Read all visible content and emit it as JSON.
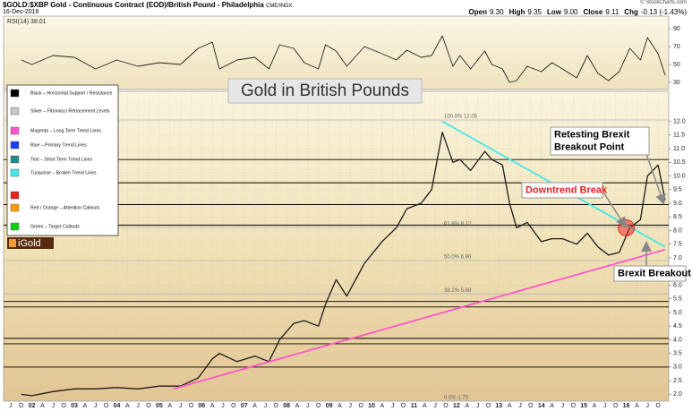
{
  "header": {
    "symbol_title": "$GOLD:$XBP Gold - Continuous Contract (EOD)/British Pound - Philadelphia",
    "exchange": "CME/INDX",
    "date": "16-Dec-2016",
    "copyright": "© StockCharts.com",
    "quote": [
      {
        "label": "Open",
        "value": "9.30"
      },
      {
        "label": "High",
        "value": "9.35"
      },
      {
        "label": "Low",
        "value": "9.00"
      },
      {
        "label": "Close",
        "value": "9.11"
      },
      {
        "label": "Chg",
        "value": "-0.13 (-1.43%)"
      }
    ]
  },
  "legend_box": {
    "items": [
      {
        "text": "Black – Horizontal Support / Resistance",
        "colors": [
          "#000000"
        ]
      },
      {
        "text": "Silver – Fibonacci Retracement Levels",
        "colors": [
          "#c8c8c8"
        ]
      },
      {
        "text": "Magenta – Long Term Trend Lines",
        "colors": [
          "#ff55cc"
        ]
      },
      {
        "text": "Blue – Primary Trend Lines",
        "colors": [
          "#1e3cff"
        ]
      },
      {
        "text": "Teal – Short Term Trend Lines",
        "colors": [
          "#2a8a8a"
        ]
      },
      {
        "text": "Turquoise – Broken Trend Lines",
        "colors": [
          "#40e8e8"
        ]
      },
      {
        "text": "Red / Orange – Attention Callouts",
        "colors": [
          "#e52020",
          "#ff9900"
        ]
      },
      {
        "text": "Green – Target Callouts",
        "colors": [
          "#10d010"
        ]
      }
    ]
  },
  "logo": "iGold",
  "chart_data": [
    {
      "type": "line",
      "title": "RSI(14) 38.01",
      "color": "#222222",
      "x": [
        "2001-10",
        "2002-01",
        "2002-07",
        "2003-01",
        "2003-07",
        "2004-01",
        "2004-07",
        "2005-01",
        "2005-07",
        "2005-12",
        "2006-04",
        "2006-06",
        "2006-11",
        "2007-04",
        "2007-08",
        "2007-11",
        "2008-03",
        "2008-06",
        "2008-10",
        "2008-12",
        "2009-03",
        "2009-06",
        "2009-11",
        "2010-04",
        "2010-08",
        "2010-11",
        "2011-03",
        "2011-06",
        "2011-09",
        "2011-12",
        "2012-02",
        "2012-05",
        "2012-09",
        "2012-11",
        "2013-02",
        "2013-04",
        "2013-06",
        "2013-09",
        "2014-01",
        "2014-04",
        "2014-07",
        "2014-11",
        "2015-02",
        "2015-05",
        "2015-08",
        "2015-11",
        "2016-02",
        "2016-05",
        "2016-07",
        "2016-10",
        "2016-12"
      ],
      "values": [
        55,
        50,
        60,
        58,
        45,
        55,
        48,
        52,
        50,
        68,
        75,
        45,
        55,
        58,
        45,
        72,
        68,
        52,
        45,
        72,
        65,
        48,
        70,
        62,
        55,
        66,
        58,
        60,
        82,
        48,
        60,
        45,
        65,
        50,
        45,
        30,
        32,
        48,
        42,
        52,
        45,
        35,
        60,
        40,
        32,
        42,
        68,
        55,
        80,
        62,
        38.01
      ],
      "xlim": [
        "2001-05",
        "2017-01"
      ],
      "ylim": [
        22,
        104
      ],
      "yticks": [
        90,
        70,
        50,
        30
      ],
      "grid": true
    },
    {
      "type": "line",
      "title": "Gold in British Pounds",
      "color": "#1a1a1a",
      "x": [
        "2001-10",
        "2002-01",
        "2002-07",
        "2003-01",
        "2003-07",
        "2004-01",
        "2004-07",
        "2005-01",
        "2005-07",
        "2005-12",
        "2006-04",
        "2006-06",
        "2006-11",
        "2007-04",
        "2007-08",
        "2007-11",
        "2008-03",
        "2008-06",
        "2008-10",
        "2008-12",
        "2009-03",
        "2009-06",
        "2009-11",
        "2010-04",
        "2010-08",
        "2010-11",
        "2011-03",
        "2011-06",
        "2011-09",
        "2011-12",
        "2012-02",
        "2012-05",
        "2012-09",
        "2012-11",
        "2013-02",
        "2013-04",
        "2013-06",
        "2013-09",
        "2014-01",
        "2014-04",
        "2014-07",
        "2014-11",
        "2015-02",
        "2015-05",
        "2015-08",
        "2015-11",
        "2016-02",
        "2016-05",
        "2016-07",
        "2016-10",
        "2016-12"
      ],
      "values": [
        2.0,
        1.95,
        2.1,
        2.2,
        2.2,
        2.25,
        2.2,
        2.3,
        2.3,
        2.6,
        3.3,
        3.5,
        3.2,
        3.4,
        3.2,
        4.0,
        4.6,
        4.7,
        4.5,
        5.3,
        6.2,
        5.6,
        6.8,
        7.6,
        8.1,
        8.8,
        9.0,
        9.5,
        11.6,
        10.5,
        10.6,
        10.2,
        10.9,
        10.6,
        10.4,
        9.0,
        8.1,
        8.3,
        7.6,
        7.7,
        7.7,
        7.5,
        7.9,
        7.4,
        7.1,
        7.2,
        8.1,
        8.4,
        10.0,
        10.4,
        9.11
      ],
      "xlim": [
        "2001-05",
        "2017-01"
      ],
      "ylim": [
        1.75,
        13.1
      ],
      "yticks": [
        {
          "value": 2,
          "label": "2.0"
        },
        2.5,
        {
          "value": 3,
          "label": "3.0"
        },
        3.5,
        {
          "value": 4,
          "label": "4.0"
        },
        4.5,
        {
          "value": 5,
          "label": "5.0"
        },
        5.5,
        {
          "value": 6,
          "label": "6.0"
        },
        6.5,
        {
          "value": 7,
          "label": "7.0"
        },
        7.5,
        {
          "value": 8,
          "label": "8.0"
        },
        8.5,
        {
          "value": 9,
          "label": "9.0"
        },
        9.5,
        {
          "value": 10,
          "label": "10.0"
        },
        10.5,
        {
          "value": 11,
          "label": "11.0"
        },
        11.5,
        {
          "value": 12,
          "label": "12.0"
        }
      ],
      "xticks": [
        {
          "value": "2001-07",
          "label": "J"
        },
        {
          "value": "2001-10",
          "label": "O"
        },
        {
          "value": "2002-01",
          "label": "02"
        },
        {
          "value": "2002-04",
          "label": "A"
        },
        {
          "value": "2002-07",
          "label": "J"
        },
        {
          "value": "2002-10",
          "label": "O"
        },
        {
          "value": "2003-01",
          "label": "03"
        },
        {
          "value": "2003-04",
          "label": "A"
        },
        {
          "value": "2003-07",
          "label": "J"
        },
        {
          "value": "2003-10",
          "label": "O"
        },
        {
          "value": "2004-01",
          "label": "04"
        },
        {
          "value": "2004-04",
          "label": "A"
        },
        {
          "value": "2004-07",
          "label": "J"
        },
        {
          "value": "2004-10",
          "label": "O"
        },
        {
          "value": "2005-01",
          "label": "05"
        },
        {
          "value": "2005-04",
          "label": "A"
        },
        {
          "value": "2005-07",
          "label": "J"
        },
        {
          "value": "2005-10",
          "label": "O"
        },
        {
          "value": "2006-01",
          "label": "06"
        },
        {
          "value": "2006-04",
          "label": "A"
        },
        {
          "value": "2006-07",
          "label": "J"
        },
        {
          "value": "2006-10",
          "label": "O"
        },
        {
          "value": "2007-01",
          "label": "07"
        },
        {
          "value": "2007-04",
          "label": "A"
        },
        {
          "value": "2007-07",
          "label": "J"
        },
        {
          "value": "2007-10",
          "label": "O"
        },
        {
          "value": "2008-01",
          "label": "08"
        },
        {
          "value": "2008-04",
          "label": "A"
        },
        {
          "value": "2008-07",
          "label": "J"
        },
        {
          "value": "2008-10",
          "label": "O"
        },
        {
          "value": "2009-01",
          "label": "09"
        },
        {
          "value": "2009-04",
          "label": "A"
        },
        {
          "value": "2009-07",
          "label": "J"
        },
        {
          "value": "2009-10",
          "label": "O"
        },
        {
          "value": "2010-01",
          "label": "10"
        },
        {
          "value": "2010-04",
          "label": "A"
        },
        {
          "value": "2010-07",
          "label": "J"
        },
        {
          "value": "2010-10",
          "label": "O"
        },
        {
          "value": "2011-01",
          "label": "11"
        },
        {
          "value": "2011-04",
          "label": "A"
        },
        {
          "value": "2011-07",
          "label": "J"
        },
        {
          "value": "2011-10",
          "label": "O"
        },
        {
          "value": "2012-01",
          "label": "12"
        },
        {
          "value": "2012-04",
          "label": "A"
        },
        {
          "value": "2012-07",
          "label": "J"
        },
        {
          "value": "2012-10",
          "label": "O"
        },
        {
          "value": "2013-01",
          "label": "13"
        },
        {
          "value": "2013-04",
          "label": "A"
        },
        {
          "value": "2013-07",
          "label": "J"
        },
        {
          "value": "2013-10",
          "label": "O"
        },
        {
          "value": "2014-01",
          "label": "14"
        },
        {
          "value": "2014-04",
          "label": "A"
        },
        {
          "value": "2014-07",
          "label": "J"
        },
        {
          "value": "2014-10",
          "label": "O"
        },
        {
          "value": "2015-01",
          "label": "15"
        },
        {
          "value": "2015-04",
          "label": "A"
        },
        {
          "value": "2015-07",
          "label": "J"
        },
        {
          "value": "2015-10",
          "label": "O"
        },
        {
          "value": "2016-01",
          "label": "16"
        },
        {
          "value": "2016-04",
          "label": "A"
        },
        {
          "value": "2016-07",
          "label": "J"
        },
        {
          "value": "2016-10",
          "label": "O"
        }
      ],
      "grid": true,
      "support_levels": [
        10.6,
        9.75,
        8.95,
        8.2,
        5.4,
        5.2,
        4.05,
        3.85,
        3.0
      ],
      "fibonacci": [
        {
          "value": 12.05,
          "label": "100.0% 12.05"
        },
        {
          "value": 8.12,
          "label": "61.8% 8.12"
        },
        {
          "value": 6.9,
          "label": "50.0% 6.90"
        },
        {
          "value": 5.68,
          "label": "38.2% 5.68"
        },
        {
          "value": 1.75,
          "label": "0.0% 1.75"
        }
      ],
      "trend_lines": [
        {
          "color": "#ff55cc",
          "x": [
            "2005-05",
            "2016-12"
          ],
          "values": [
            2.2,
            7.3
          ]
        },
        {
          "color": "#40e8e8",
          "x": [
            "2011-09",
            "2016-12"
          ],
          "values": [
            12.0,
            7.4
          ]
        }
      ],
      "callout": {
        "x": "2016-01",
        "value": 8.1,
        "color": "#e52020"
      },
      "annotations": [
        {
          "lines": [
            "Retesting Brexit",
            "Breakout Point"
          ],
          "color": "#000000"
        },
        {
          "lines": [
            "Downtrend Break"
          ],
          "color": "#e52020"
        },
        {
          "lines": [
            "Brexit Breakout"
          ],
          "color": "#000000"
        }
      ]
    }
  ]
}
